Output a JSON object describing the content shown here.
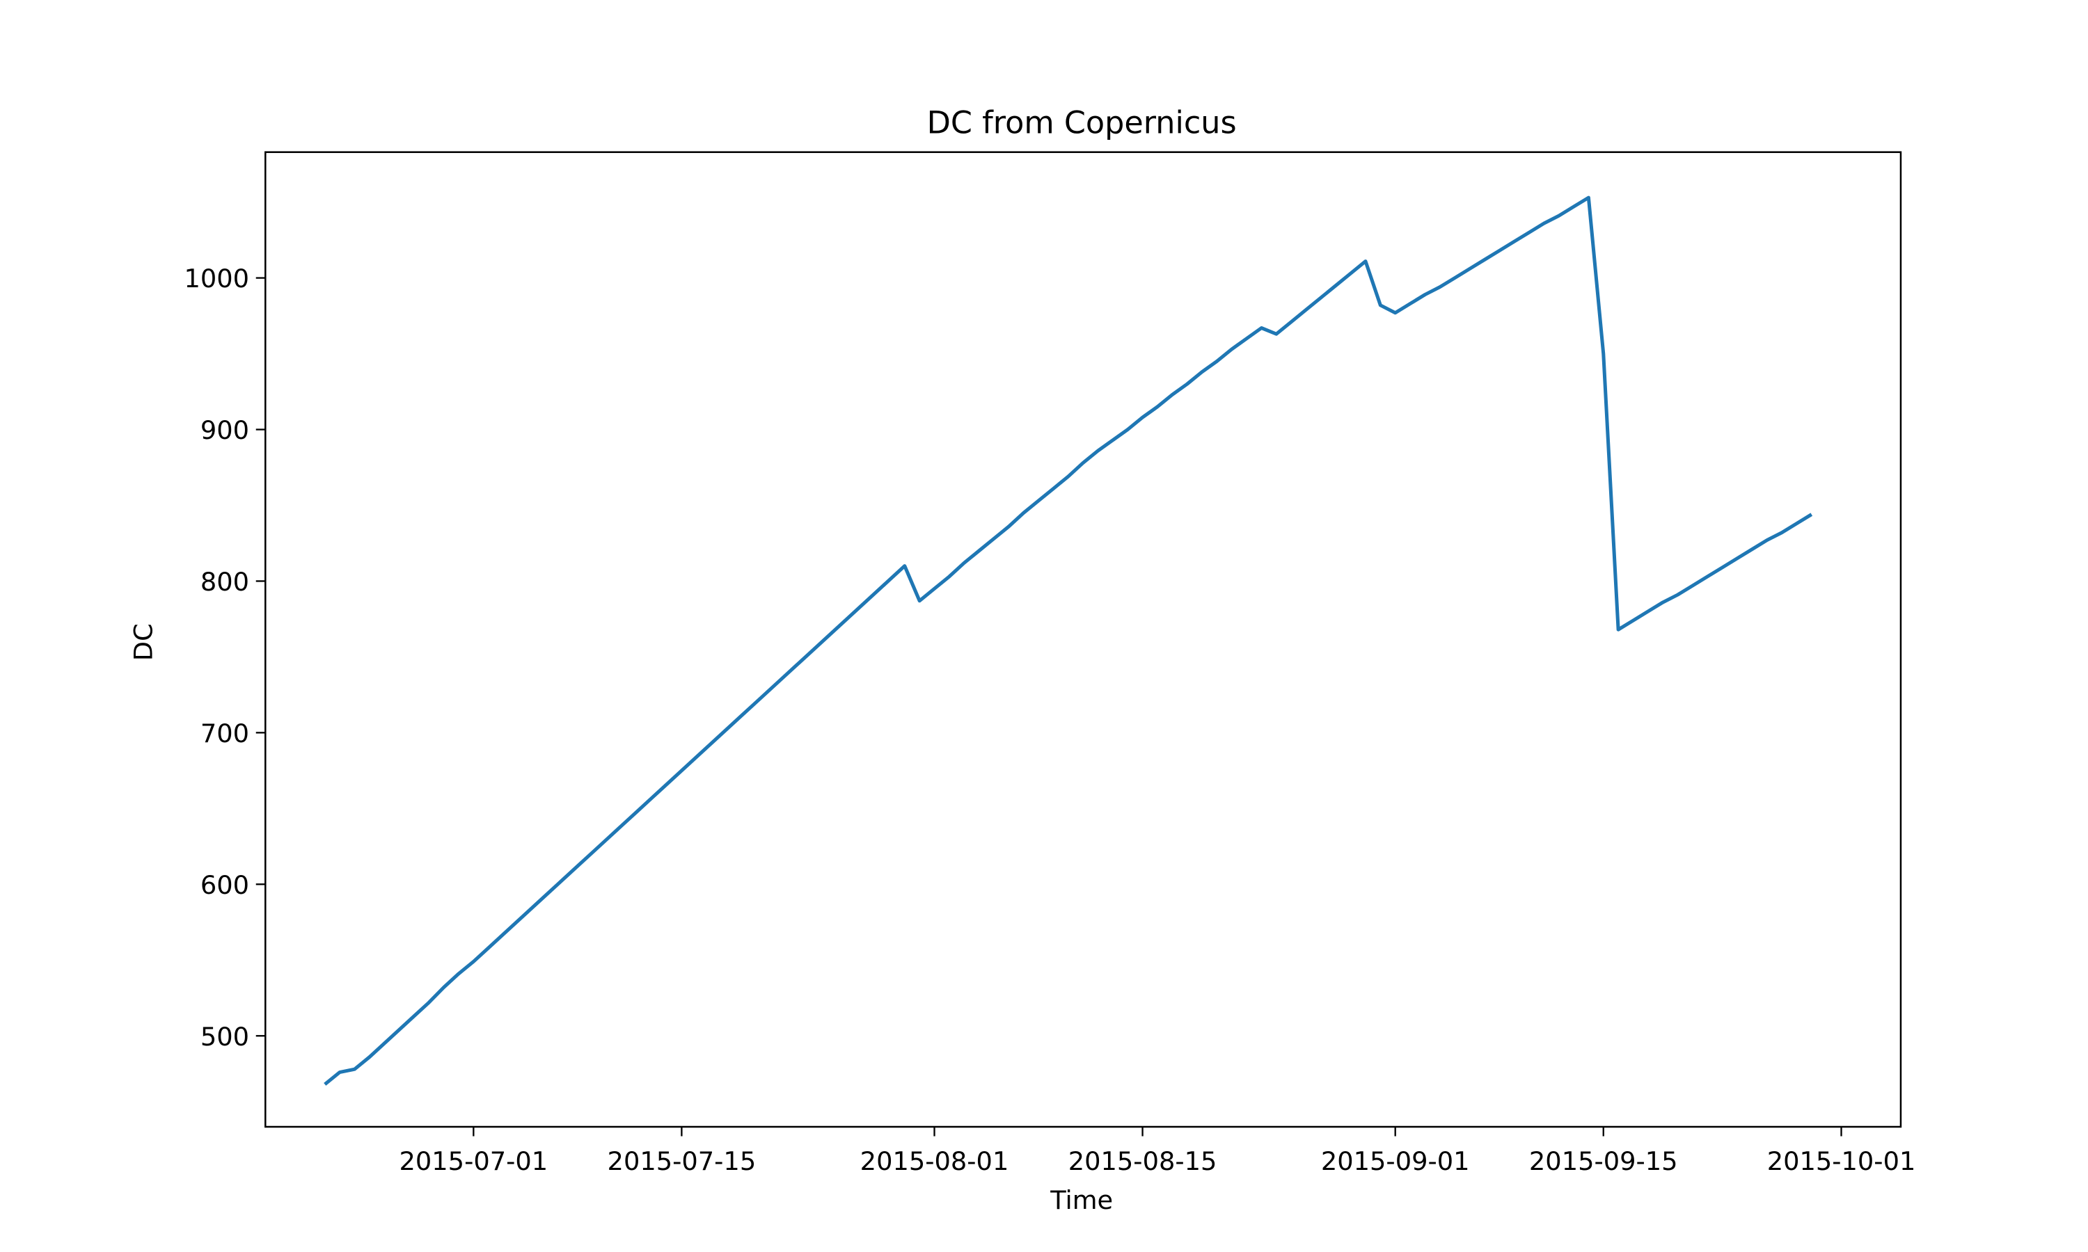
{
  "chart_data": {
    "type": "line",
    "title": "DC from Copernicus",
    "x_label": "Time",
    "y_label": "DC",
    "x": [
      "2015-06-21",
      "2015-06-22",
      "2015-06-23",
      "2015-06-24",
      "2015-06-25",
      "2015-06-26",
      "2015-06-27",
      "2015-06-28",
      "2015-06-29",
      "2015-06-30",
      "2015-07-01",
      "2015-07-02",
      "2015-07-03",
      "2015-07-04",
      "2015-07-05",
      "2015-07-06",
      "2015-07-07",
      "2015-07-08",
      "2015-07-09",
      "2015-07-10",
      "2015-07-11",
      "2015-07-12",
      "2015-07-13",
      "2015-07-14",
      "2015-07-15",
      "2015-07-16",
      "2015-07-17",
      "2015-07-18",
      "2015-07-19",
      "2015-07-20",
      "2015-07-21",
      "2015-07-22",
      "2015-07-23",
      "2015-07-24",
      "2015-07-25",
      "2015-07-26",
      "2015-07-27",
      "2015-07-28",
      "2015-07-29",
      "2015-07-30",
      "2015-07-31",
      "2015-08-01",
      "2015-08-02",
      "2015-08-03",
      "2015-08-04",
      "2015-08-05",
      "2015-08-06",
      "2015-08-07",
      "2015-08-08",
      "2015-08-09",
      "2015-08-10",
      "2015-08-11",
      "2015-08-12",
      "2015-08-13",
      "2015-08-14",
      "2015-08-15",
      "2015-08-16",
      "2015-08-17",
      "2015-08-18",
      "2015-08-19",
      "2015-08-20",
      "2015-08-21",
      "2015-08-22",
      "2015-08-23",
      "2015-08-24",
      "2015-08-25",
      "2015-08-26",
      "2015-08-27",
      "2015-08-28",
      "2015-08-29",
      "2015-08-30",
      "2015-08-31",
      "2015-09-01",
      "2015-09-02",
      "2015-09-03",
      "2015-09-04",
      "2015-09-05",
      "2015-09-06",
      "2015-09-07",
      "2015-09-08",
      "2015-09-09",
      "2015-09-10",
      "2015-09-11",
      "2015-09-12",
      "2015-09-13",
      "2015-09-14",
      "2015-09-15",
      "2015-09-16",
      "2015-09-17",
      "2015-09-18",
      "2015-09-19",
      "2015-09-20",
      "2015-09-21",
      "2015-09-22",
      "2015-09-23",
      "2015-09-24",
      "2015-09-25",
      "2015-09-26",
      "2015-09-27",
      "2015-09-28",
      "2015-09-29"
    ],
    "series": [
      {
        "name": "DC",
        "color": "#1f77b4",
        "values": [
          468,
          476,
          478,
          486,
          495,
          504,
          513,
          522,
          532,
          541,
          549,
          558,
          567,
          576,
          585,
          594,
          603,
          612,
          621,
          630,
          639,
          648,
          657,
          666,
          675,
          684,
          693,
          702,
          711,
          720,
          729,
          738,
          747,
          756,
          765,
          774,
          783,
          792,
          801,
          810,
          787,
          795,
          803,
          812,
          820,
          828,
          836,
          845,
          853,
          861,
          869,
          878,
          886,
          893,
          900,
          908,
          915,
          923,
          930,
          938,
          945,
          953,
          960,
          967,
          963,
          971,
          979,
          987,
          995,
          1003,
          1011,
          982,
          977,
          983,
          989,
          994,
          1000,
          1006,
          1012,
          1018,
          1024,
          1030,
          1036,
          1041,
          1047,
          1053,
          950,
          768,
          774,
          780,
          786,
          791,
          797,
          803,
          809,
          815,
          821,
          827,
          832,
          838,
          844
        ]
      }
    ],
    "xlim": [
      "2015-06-17",
      "2015-10-05"
    ],
    "xticks": [
      "2015-07-01",
      "2015-07-15",
      "2015-08-01",
      "2015-08-15",
      "2015-09-01",
      "2015-09-15",
      "2015-10-01"
    ],
    "ylim": [
      440,
      1083
    ],
    "yticks": [
      500,
      600,
      700,
      800,
      900,
      1000
    ],
    "grid": false
  }
}
